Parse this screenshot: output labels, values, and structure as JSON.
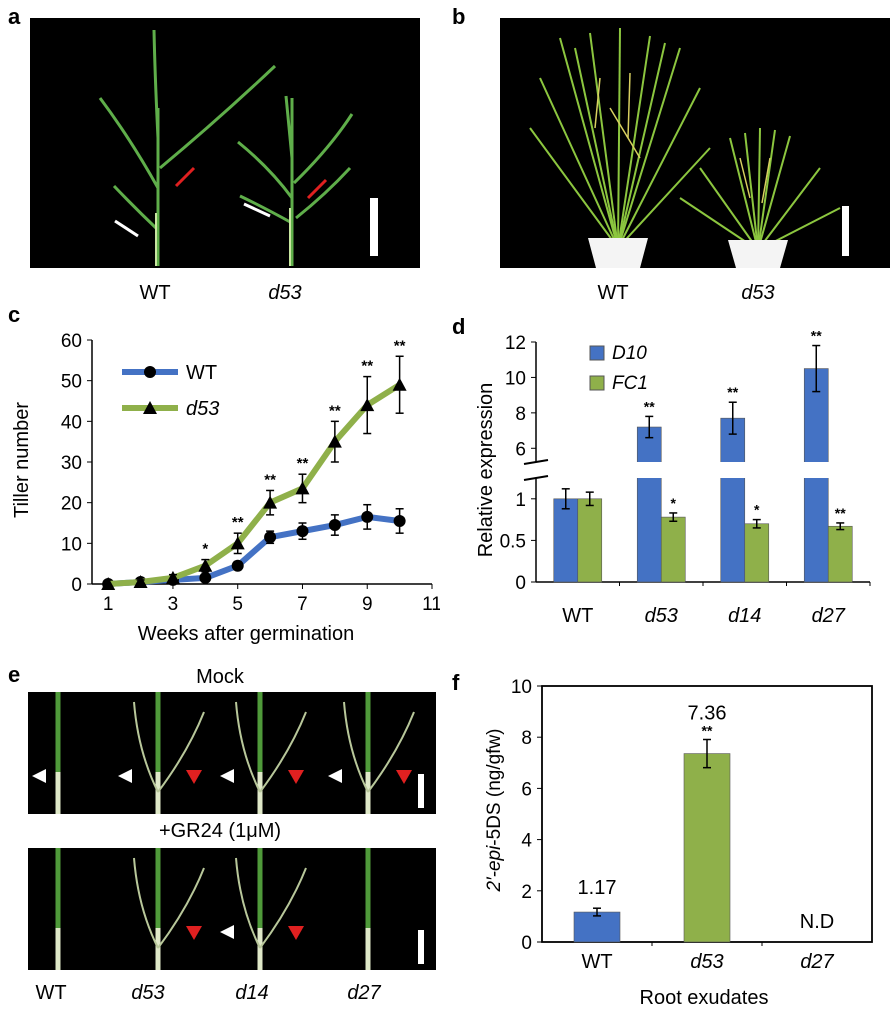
{
  "panels": {
    "a": {
      "label": "a",
      "captions": [
        {
          "text": "WT",
          "italic": false
        },
        {
          "text": "d53",
          "italic": true
        }
      ]
    },
    "b": {
      "label": "b",
      "captions": [
        {
          "text": "WT",
          "italic": false
        },
        {
          "text": "d53",
          "italic": true
        }
      ]
    },
    "c": {
      "label": "c"
    },
    "d": {
      "label": "d"
    },
    "e": {
      "label": "e",
      "mock_title": "Mock",
      "gr24_title": "+GR24 (1μM)",
      "captions": [
        {
          "text": "WT",
          "italic": false
        },
        {
          "text": "d53",
          "italic": true
        },
        {
          "text": "d14",
          "italic": true
        },
        {
          "text": "d27",
          "italic": true
        }
      ]
    },
    "f": {
      "label": "f"
    }
  },
  "chart_data": [
    {
      "id": "c",
      "type": "line",
      "xlabel": "Weeks after germination",
      "ylabel": "Tiller number",
      "xlim": [
        0.5,
        11
      ],
      "ylim": [
        0,
        60
      ],
      "xticks": [
        1,
        3,
        5,
        7,
        9,
        11
      ],
      "yticks": [
        0,
        10,
        20,
        30,
        40,
        50,
        60
      ],
      "legend": "top-left",
      "grid": false,
      "x": [
        1,
        2,
        3,
        4,
        5,
        6,
        7,
        8,
        9,
        10
      ],
      "series": [
        {
          "name": "WT",
          "color": "#4472c4",
          "marker": "circle",
          "values": [
            0,
            0.5,
            1,
            1.5,
            4.5,
            11.5,
            13,
            14.5,
            16.5,
            15.5
          ],
          "errors": [
            0,
            0.5,
            0.5,
            0.8,
            1,
            1.5,
            2,
            2.5,
            3,
            3
          ]
        },
        {
          "name": "d53",
          "color": "#8fb04a",
          "marker": "triangle",
          "values": [
            0,
            0.5,
            1.5,
            4.5,
            10,
            20,
            23.5,
            35,
            44,
            49
          ],
          "errors": [
            0,
            0.5,
            0.8,
            1.5,
            2.5,
            3,
            3.5,
            5,
            7,
            7
          ]
        }
      ],
      "annotations": [
        {
          "x": 4,
          "text": "*"
        },
        {
          "x": 5,
          "text": "**"
        },
        {
          "x": 6,
          "text": "**"
        },
        {
          "x": 7,
          "text": "**"
        },
        {
          "x": 8,
          "text": "**"
        },
        {
          "x": 9,
          "text": "**"
        },
        {
          "x": 10,
          "text": "**"
        }
      ]
    },
    {
      "id": "d",
      "type": "bar",
      "ylabel": "Relative expression",
      "categories": [
        "WT",
        "d53",
        "d14",
        "d27"
      ],
      "category_italic": [
        false,
        true,
        true,
        true
      ],
      "yticks_lower": [
        "0",
        "0.5",
        "1"
      ],
      "yticks_upper": [
        "6",
        "8",
        "10",
        "12"
      ],
      "axis_break": true,
      "legend": "top-left",
      "series": [
        {
          "name": "D10",
          "color": "#4472c4",
          "values": [
            1,
            7.2,
            7.7,
            10.5
          ],
          "errors": [
            0.12,
            0.6,
            0.9,
            1.3
          ],
          "annotations": [
            "",
            "**",
            "**",
            "**"
          ]
        },
        {
          "name": "FC1",
          "color": "#8fb04a",
          "values": [
            1,
            0.78,
            0.7,
            0.67
          ],
          "errors": [
            0.08,
            0.05,
            0.05,
            0.04
          ],
          "annotations": [
            "",
            "*",
            "*",
            "**"
          ]
        }
      ]
    },
    {
      "id": "f",
      "type": "bar",
      "xlabel": "Root exudates",
      "ylabel_italic": "2′-epi",
      "ylabel_rest": "-5DS (ng/gfw)",
      "categories": [
        "WT",
        "d53",
        "d27"
      ],
      "category_italic": [
        false,
        true,
        true
      ],
      "ylim": [
        0,
        10
      ],
      "yticks": [
        0,
        2,
        4,
        6,
        8,
        10
      ],
      "values": [
        1.17,
        7.36,
        0
      ],
      "errors": [
        0.15,
        0.55,
        0
      ],
      "colors": [
        "#4472c4",
        "#8fb04a",
        "#8fb04a"
      ],
      "value_labels": [
        "1.17",
        "7.36",
        "N.D"
      ],
      "annotations": [
        "",
        "**",
        ""
      ]
    }
  ]
}
